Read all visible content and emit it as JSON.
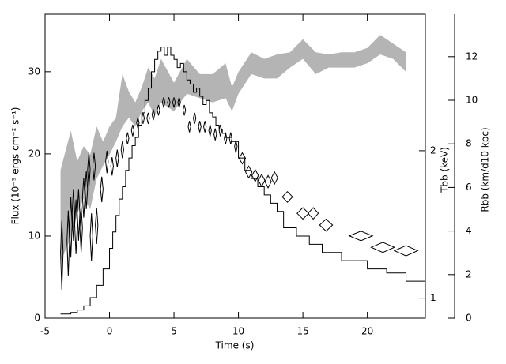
{
  "chart_data": {
    "type": "line",
    "xlabel": "Time (s)",
    "ylabel": "Flux (10⁻⁹ ergs cm⁻² s⁻¹)",
    "y2label": "Tbb (keV)",
    "y3label": "Rbb (km/d10 kpc)",
    "xlim": [
      -5,
      24.5
    ],
    "xticks": [
      -5,
      0,
      5,
      10,
      15,
      20
    ],
    "ylim": [
      0,
      37
    ],
    "yticks": [
      0,
      10,
      20,
      30
    ],
    "y2lim": [
      0.91,
      3.8
    ],
    "y2ticks": [
      1,
      2
    ],
    "y2scale": "log",
    "y3lim": [
      0,
      13.95
    ],
    "y3ticks": [
      0,
      2,
      4,
      6,
      8,
      10,
      12
    ],
    "series": [
      {
        "name": "Flux",
        "kind": "step",
        "color": "#000000",
        "edges": [
          -3.8,
          -3.0,
          -2.5,
          -2,
          -1.5,
          -1,
          -0.5,
          0,
          0.25,
          0.5,
          0.75,
          1,
          1.25,
          1.5,
          1.75,
          2,
          2.25,
          2.5,
          2.75,
          3,
          3.25,
          3.5,
          3.75,
          4,
          4.25,
          4.5,
          4.75,
          5,
          5.25,
          5.5,
          5.75,
          6,
          6.25,
          6.5,
          6.75,
          7,
          7.25,
          7.5,
          7.75,
          8,
          8.25,
          8.5,
          8.75,
          9,
          9.25,
          9.5,
          10,
          10.5,
          11,
          11.5,
          12,
          12.5,
          13,
          13.5,
          14.5,
          15.5,
          16.5,
          18,
          20,
          21.5,
          23,
          24.5
        ],
        "values": [
          0.5,
          0.7,
          1.0,
          1.5,
          2.5,
          4,
          6,
          8.5,
          10.5,
          12.5,
          14.5,
          16,
          18,
          19.5,
          21,
          22,
          23.5,
          25,
          26.5,
          28,
          30,
          31.5,
          32.5,
          33,
          32,
          33,
          32,
          31.5,
          30.5,
          31,
          30,
          29,
          28.5,
          27.5,
          28,
          27,
          26,
          26.5,
          25,
          24.5,
          23.5,
          23,
          22.5,
          22,
          22,
          21.5,
          19.5,
          18,
          17,
          16,
          15,
          14,
          13,
          11,
          10,
          9,
          8,
          7,
          6,
          5.5,
          4.5
        ]
      },
      {
        "name": "Tbb",
        "kind": "diamond",
        "axis": "y2",
        "color": "#000000",
        "x": [
          -3.7,
          -3.2,
          -3.0,
          -2.8,
          -2.6,
          -2.4,
          -2.2,
          -2.0,
          -1.8,
          -1.6,
          -1.4,
          -1.2,
          -1.0,
          -0.6,
          -0.2,
          0.2,
          0.6,
          1.0,
          1.4,
          1.8,
          2.2,
          2.6,
          3.0,
          3.4,
          3.8,
          4.2,
          4.6,
          5.0,
          5.4,
          5.8,
          6.2,
          6.6,
          7.0,
          7.4,
          7.8,
          8.2,
          8.6,
          9.0,
          9.4,
          9.8,
          10.3,
          10.8,
          11.3,
          11.8,
          12.3,
          12.8,
          13.8,
          15.0,
          15.8,
          16.8,
          19.5,
          21.2,
          23.0
        ],
        "values": [
          1.24,
          1.31,
          1.41,
          1.49,
          1.41,
          1.49,
          1.39,
          1.61,
          1.67,
          1.83,
          1.34,
          1.86,
          1.41,
          1.67,
          1.9,
          1.86,
          1.93,
          2.01,
          2.12,
          2.2,
          2.28,
          2.33,
          2.33,
          2.37,
          2.42,
          2.51,
          2.51,
          2.51,
          2.51,
          2.42,
          2.24,
          2.33,
          2.24,
          2.24,
          2.2,
          2.16,
          2.2,
          2.12,
          2.12,
          2.04,
          1.93,
          1.81,
          1.78,
          1.74,
          1.73,
          1.76,
          1.61,
          1.49,
          1.49,
          1.41,
          1.34,
          1.27,
          1.25
        ],
        "xerr": [
          0.1,
          0.1,
          0.1,
          0.1,
          0.1,
          0.1,
          0.1,
          0.1,
          0.1,
          0.1,
          0.1,
          0.1,
          0.1,
          0.1,
          0.1,
          0.1,
          0.1,
          0.1,
          0.1,
          0.1,
          0.1,
          0.1,
          0.1,
          0.1,
          0.1,
          0.1,
          0.1,
          0.1,
          0.1,
          0.1,
          0.1,
          0.1,
          0.1,
          0.1,
          0.1,
          0.1,
          0.1,
          0.1,
          0.1,
          0.1,
          0.25,
          0.25,
          0.25,
          0.25,
          0.25,
          0.25,
          0.4,
          0.45,
          0.4,
          0.5,
          0.9,
          0.9,
          0.9
        ],
        "yerr": [
          0.2,
          0.2,
          0.2,
          0.18,
          0.18,
          0.18,
          0.15,
          0.15,
          0.15,
          0.15,
          0.15,
          0.12,
          0.12,
          0.1,
          0.1,
          0.08,
          0.08,
          0.08,
          0.06,
          0.06,
          0.06,
          0.06,
          0.06,
          0.06,
          0.06,
          0.06,
          0.06,
          0.06,
          0.06,
          0.06,
          0.06,
          0.06,
          0.06,
          0.06,
          0.06,
          0.06,
          0.06,
          0.06,
          0.06,
          0.06,
          0.05,
          0.05,
          0.05,
          0.05,
          0.05,
          0.05,
          0.04,
          0.04,
          0.04,
          0.04,
          0.03,
          0.03,
          0.03
        ]
      },
      {
        "name": "Rbb",
        "kind": "band",
        "axis": "y3",
        "color": "#b4b4b4",
        "x": [
          -3.8,
          -3,
          -2.5,
          -2,
          -1.5,
          -1,
          -0.5,
          0,
          0.5,
          1,
          1.5,
          2,
          2.5,
          3,
          3.5,
          4,
          5,
          6,
          7,
          8,
          9,
          9.5,
          10,
          11,
          12,
          13,
          14,
          15,
          16,
          17,
          18,
          19,
          20,
          21,
          22,
          23
        ],
        "low": [
          2.6,
          3.7,
          4.8,
          5.5,
          5.0,
          6.4,
          7.0,
          7.5,
          8.1,
          8.8,
          9.2,
          8.8,
          9.5,
          9.9,
          9.3,
          9.9,
          9.5,
          10.3,
          10.1,
          9.9,
          10.1,
          9.5,
          10.3,
          11.2,
          11.0,
          11.0,
          11.5,
          11.9,
          11.2,
          11.5,
          11.5,
          11.5,
          11.7,
          12.1,
          11.9,
          11.3
        ],
        "high": [
          6.8,
          8.6,
          7.2,
          7.9,
          7.5,
          8.8,
          8.1,
          8.8,
          9.2,
          11.2,
          10.4,
          9.9,
          10.6,
          11.5,
          11.0,
          11.9,
          10.8,
          11.9,
          11.2,
          11.2,
          11.7,
          10.6,
          11.3,
          12.2,
          11.9,
          12.1,
          12.2,
          12.8,
          12.2,
          12.1,
          12.2,
          12.2,
          12.4,
          13.0,
          12.6,
          12.2
        ]
      }
    ]
  }
}
